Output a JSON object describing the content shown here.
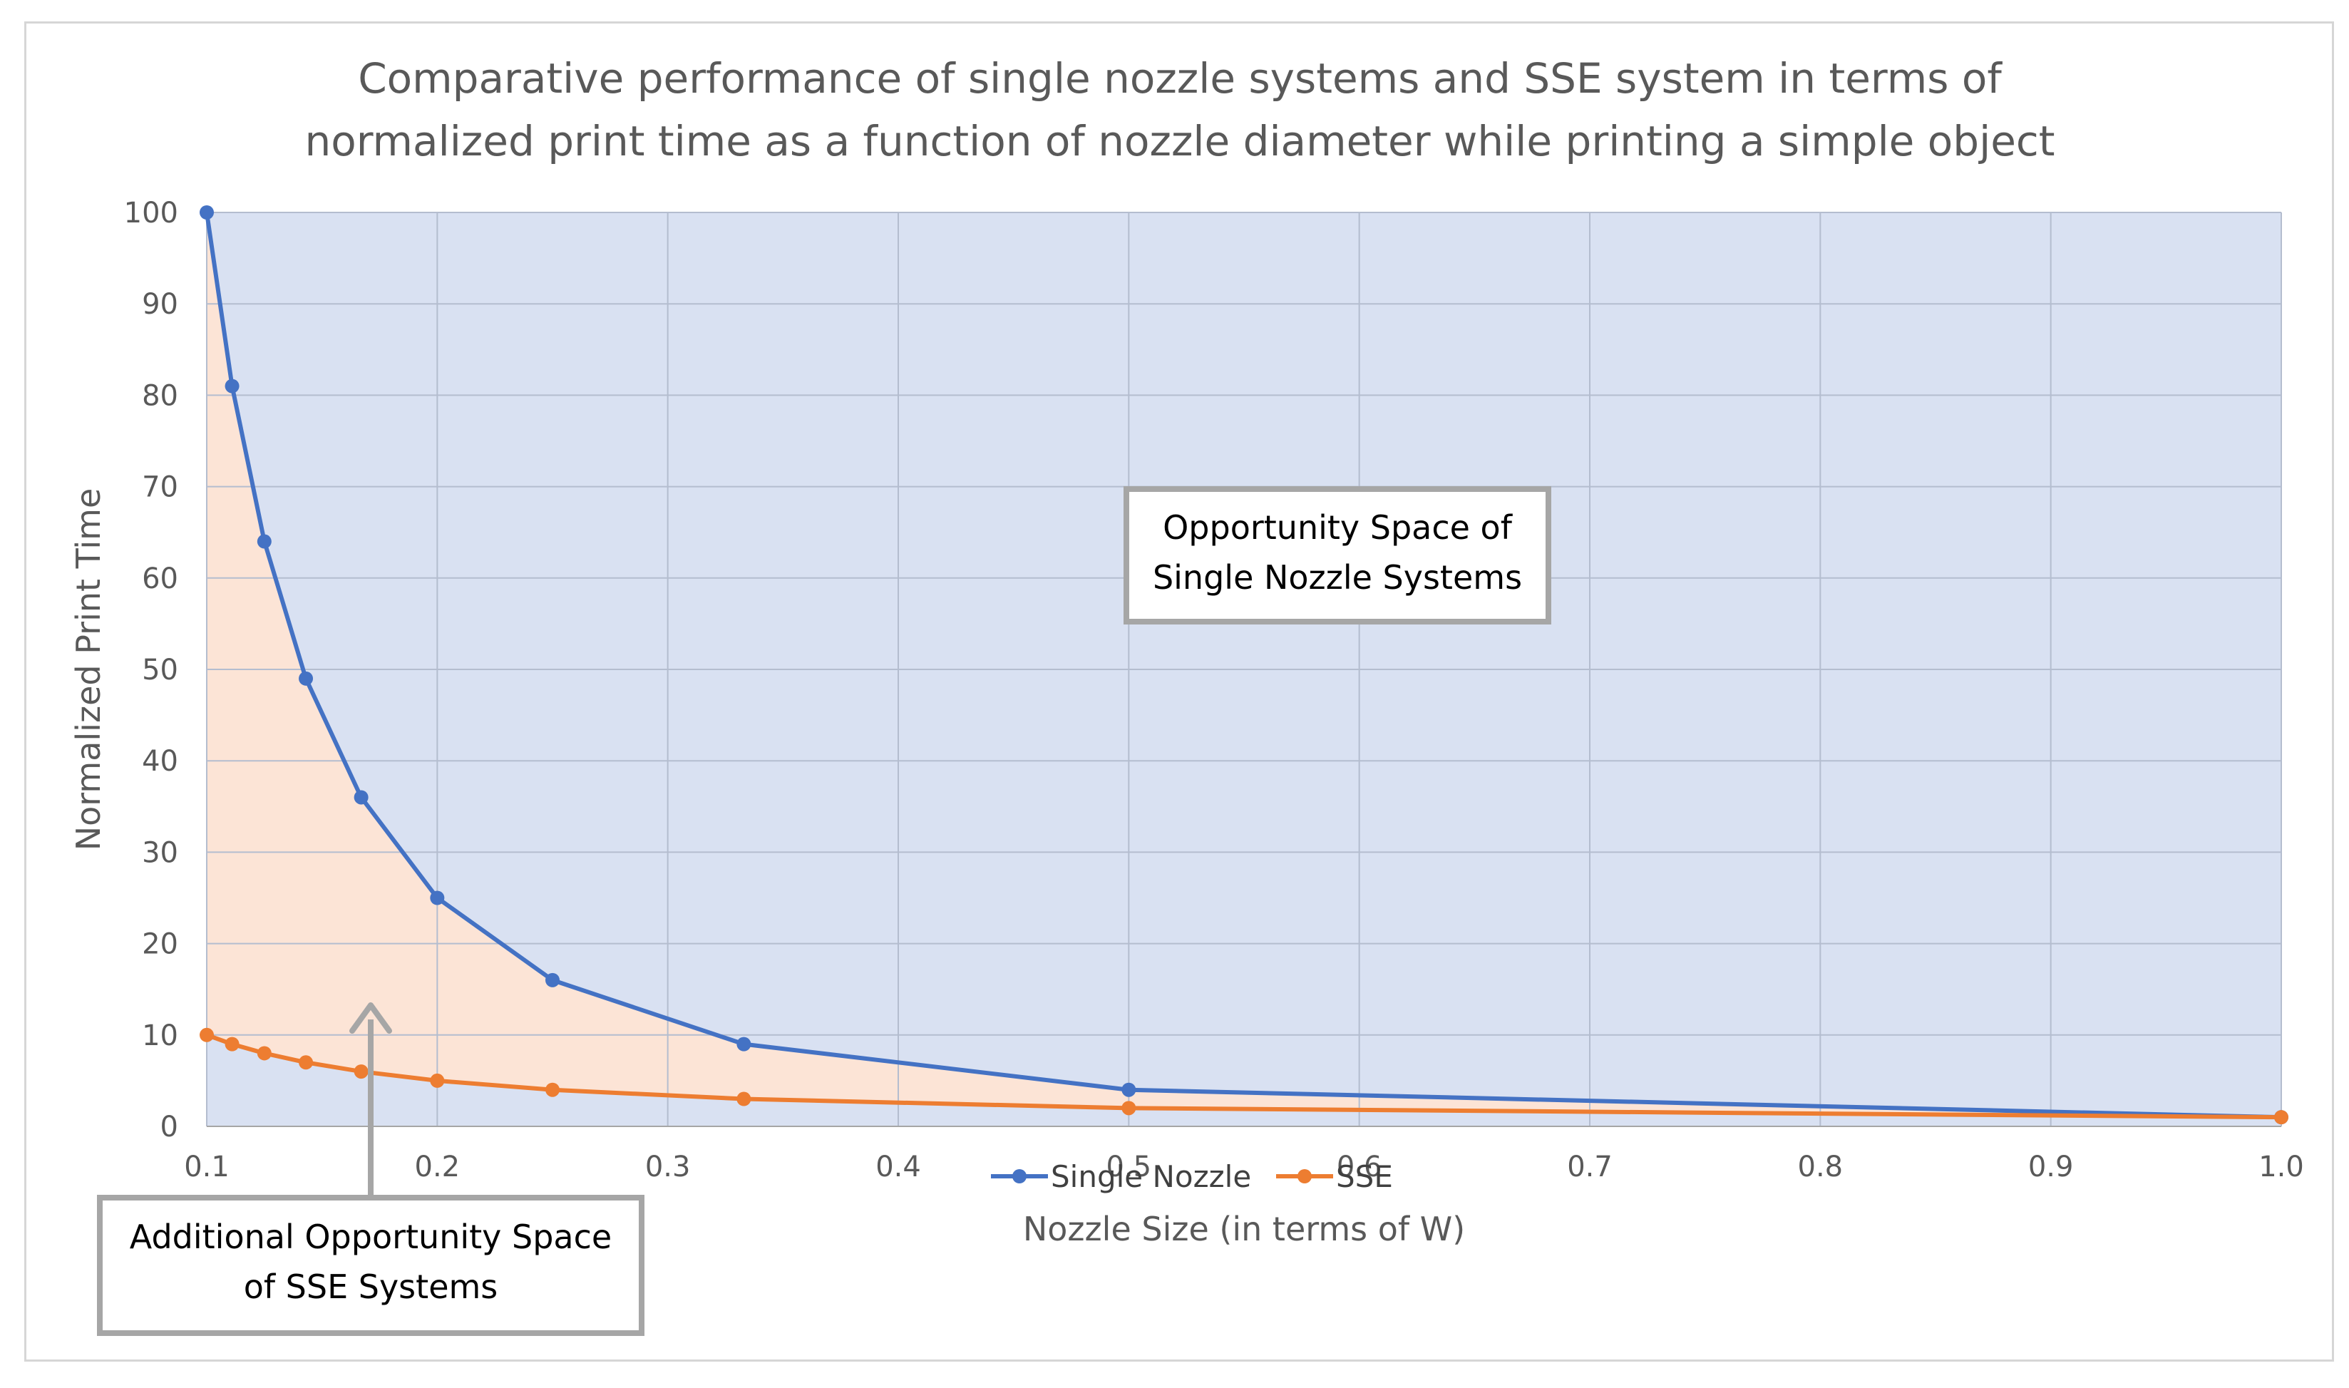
{
  "chart_data": {
    "type": "line",
    "title": [
      "Comparative performance of single nozzle systems and SSE system in terms of",
      "normalized print time as a function of nozzle diameter while printing a simple object"
    ],
    "xlabel": "Nozzle Size (in terms of W)",
    "ylabel": "Normalized Print Time",
    "xlim": [
      0.1,
      1.0
    ],
    "ylim": [
      0,
      100
    ],
    "x_ticks": [
      "0.1",
      "0.2",
      "0.3",
      "0.4",
      "0.5",
      "0.6",
      "0.7",
      "0.8",
      "0.9",
      "1.0"
    ],
    "y_ticks": [
      "0",
      "10",
      "20",
      "30",
      "40",
      "50",
      "60",
      "70",
      "80",
      "90",
      "100"
    ],
    "grid": true,
    "legend_position": "bottom",
    "series": [
      {
        "name": "Single Nozzle",
        "color": "#4472c4",
        "x": [
          0.1,
          0.111,
          0.125,
          0.143,
          0.167,
          0.2,
          0.25,
          0.333,
          0.5,
          1.0
        ],
        "y": [
          100,
          81,
          64,
          49,
          36,
          25,
          16,
          9,
          4,
          1
        ]
      },
      {
        "name": "SSE",
        "color": "#ed7d31",
        "x": [
          0.1,
          0.111,
          0.125,
          0.143,
          0.167,
          0.2,
          0.25,
          0.333,
          0.5,
          1.0
        ],
        "y": [
          10,
          9,
          8,
          7,
          6,
          5,
          4,
          3,
          2,
          1
        ]
      }
    ],
    "regions": {
      "upper_fill": "#d9e1f2",
      "lower_fill": "#fce4d6"
    },
    "annotations": [
      {
        "id": "single",
        "lines": [
          "Opportunity Space of",
          "Single Nozzle Systems"
        ]
      },
      {
        "id": "sse",
        "lines": [
          "Additional Opportunity Space",
          "of SSE Systems"
        ]
      }
    ]
  }
}
